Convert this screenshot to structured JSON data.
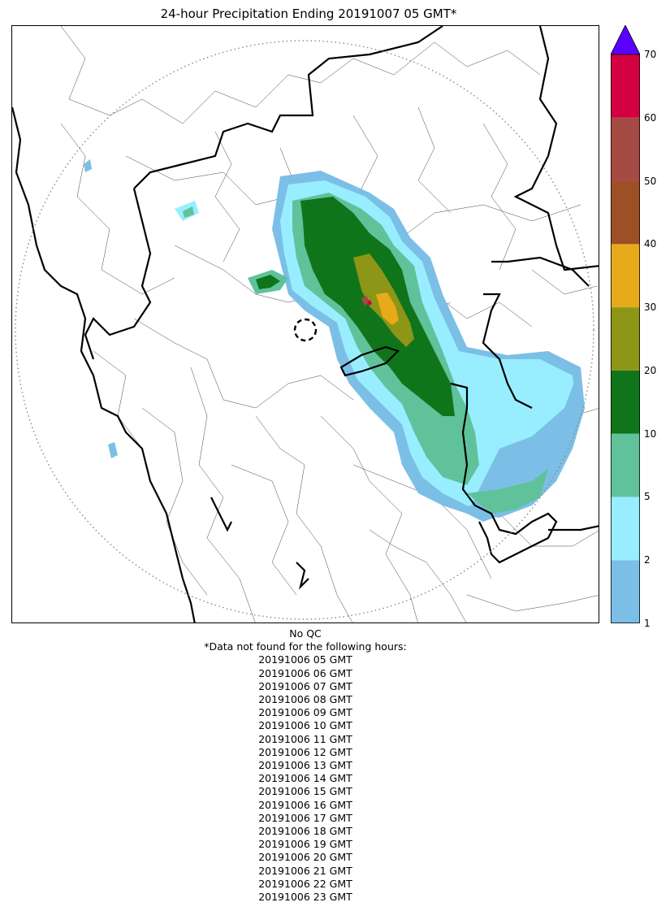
{
  "title": "24-hour Precipitation Ending 20191007 05 GMT*",
  "colorbar": {
    "ticks": [
      "1",
      "2",
      "5",
      "10",
      "20",
      "30",
      "40",
      "50",
      "60",
      "70"
    ],
    "colors": [
      "#7bbfe6",
      "#98eeff",
      "#5fc29a",
      "#10741b",
      "#8d9617",
      "#e6aa1b",
      "#9d4f26",
      "#a64a44",
      "#d4003f"
    ],
    "extend_color": "#5a00ff",
    "units": ""
  },
  "map": {
    "range_ring_style": "dotted",
    "radar_site_marker": "dashed circle"
  },
  "notes": {
    "qc": "No QC",
    "missing_header": "*Data not found for the following hours:",
    "missing_hours": [
      "20191006 05 GMT",
      "20191006 06 GMT",
      "20191006 07 GMT",
      "20191006 08 GMT",
      "20191006 09 GMT",
      "20191006 10 GMT",
      "20191006 11 GMT",
      "20191006 12 GMT",
      "20191006 13 GMT",
      "20191006 14 GMT",
      "20191006 15 GMT",
      "20191006 16 GMT",
      "20191006 17 GMT",
      "20191006 18 GMT",
      "20191006 19 GMT",
      "20191006 20 GMT",
      "20191006 21 GMT",
      "20191006 22 GMT",
      "20191006 23 GMT"
    ]
  }
}
